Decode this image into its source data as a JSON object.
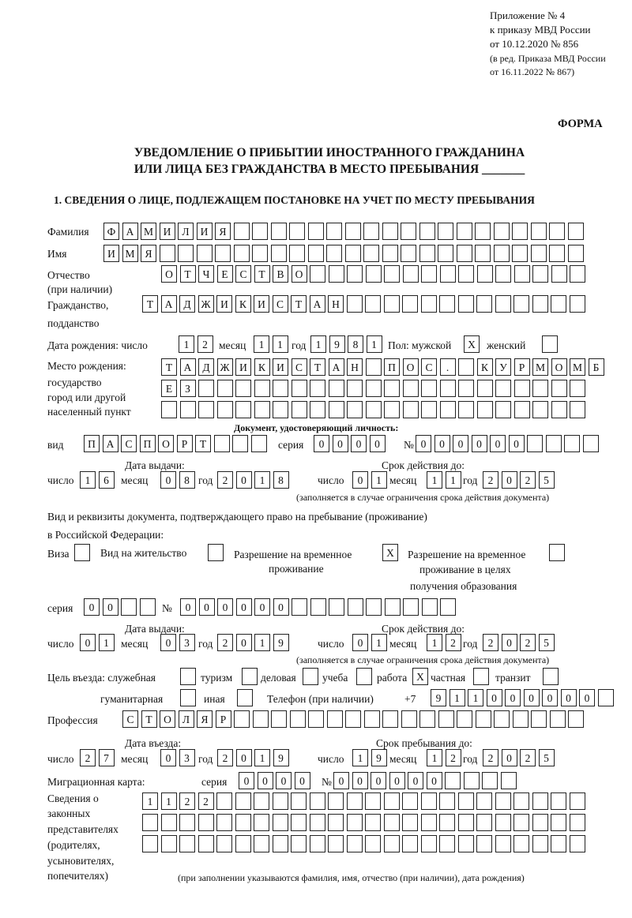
{
  "header": {
    "line1": "Приложение № 4",
    "line2": "к приказу МВД России",
    "line3": "от 10.12.2020 № 856",
    "line4": "(в ред. Приказа МВД России",
    "line5": "от 16.11.2022 № 867)",
    "forma": "ФОРМА",
    "title1": "УВЕДОМЛЕНИЕ О ПРИБЫТИИ ИНОСТРАННОГО ГРАЖДАНИНА",
    "title2": "ИЛИ ЛИЦА БЕЗ ГРАЖДАНСТВА В МЕСТО ПРЕБЫВАНИЯ _______",
    "section1": "1. СВЕДЕНИЯ О ЛИЦЕ, ПОДЛЕЖАЩЕМ ПОСТАНОВКЕ НА УЧЕТ ПО МЕСТУ ПРЕБЫВАНИЯ"
  },
  "labels": {
    "surname": "Фамилия",
    "name": "Имя",
    "patronymic": "Отчество",
    "patronymic2": "(при наличии)",
    "citizenship": "Гражданство,",
    "citizenship2": "подданство",
    "birth_date": "Дата рождения:  число",
    "month": "месяц",
    "year": "год",
    "day": "число",
    "sex_male": "Пол: мужской",
    "sex_female": "женский",
    "birthplace1": "Место рождения:",
    "birthplace2": "государство",
    "birthplace3": "город или другой",
    "birthplace4": "населенный пункт",
    "id_doc": "Документ, удостоверяющий личность:",
    "kind": "вид",
    "series": "серия",
    "number": "№",
    "issue_date": "Дата выдачи:",
    "valid_until": "Срок действия до:",
    "valid_note": "(заполняется в случае ограничения срока действия документа)",
    "right_doc1": "Вид и реквизиты документа, подтверждающего право на пребывание (проживание)",
    "right_doc2": "в Российской Федерации:",
    "visa": "Виза",
    "residence": "Вид на жительство",
    "temp1": "Разрешение на временное",
    "temp2": "проживание",
    "edu1": "Разрешение на временное",
    "edu2": "проживание в целях",
    "edu3": "получения образования",
    "purpose": "Цель въезда: служебная",
    "tourism": "туризм",
    "business": "деловая",
    "study": "учеба",
    "work": "работа",
    "private": "частная",
    "transit": "транзит",
    "humanitarian": "гуманитарная",
    "other": "иная",
    "phone": "Телефон (при наличии)",
    "phone_prefix": "+7",
    "profession": "Профессия",
    "entry_date": "Дата въезда:",
    "stay_until": "Срок пребывания до:",
    "migration_card": "Миграционная карта:",
    "reps1": "Сведения о",
    "reps2": "законных",
    "reps3": "представителях",
    "reps4": "(родителях,",
    "reps5": "усыновителях,",
    "reps6": "попечителях)",
    "reps_note": "(при заполнении указываются фамилия, имя, отчество (при наличии), дата рождения)"
  },
  "fields": {
    "surname": "ФАМИЛИЯ",
    "name": "ИМЯ",
    "patronymic": "ОТЧЕСТВО",
    "citizenship": "ТАДЖИКИСТАН",
    "birth_day": "12",
    "birth_month": "11",
    "birth_year": "1981",
    "sex_male": "X",
    "sex_female": "",
    "birthplace_1": "ТАДЖИКИСТАН ПОС. КУРМОМБ",
    "birthplace_2": "ЕЗ",
    "birthplace_3": "",
    "id_kind": "ПАСПОРТ",
    "id_series": "0000",
    "id_number": "000000",
    "id_issue_day": "16",
    "id_issue_month": "08",
    "id_issue_year": "2018",
    "id_valid_day": "01",
    "id_valid_month": "11",
    "id_valid_year": "2025",
    "visa": "",
    "residence": "",
    "temp_residence": "X",
    "edu_residence": "",
    "rd_series": "00",
    "rd_number": "000000",
    "rd_issue_day": "01",
    "rd_issue_month": "03",
    "rd_issue_year": "2019",
    "rd_valid_day": "01",
    "rd_valid_month": "12",
    "rd_valid_year": "2025",
    "p_service": "",
    "p_tourism": "",
    "p_business": "",
    "p_study": "",
    "p_work": "X",
    "p_private": "",
    "p_transit": "",
    "p_humanitarian": "",
    "p_other": "",
    "phone": "911000000",
    "profession": "СТОЛЯР",
    "entry_day": "27",
    "entry_month": "03",
    "entry_year": "2019",
    "stay_day": "19",
    "stay_month": "12",
    "stay_year": "2025",
    "mc_series": "0000",
    "mc_number": "000000",
    "reps_1": "1122",
    "reps_2": "",
    "reps_3": ""
  }
}
